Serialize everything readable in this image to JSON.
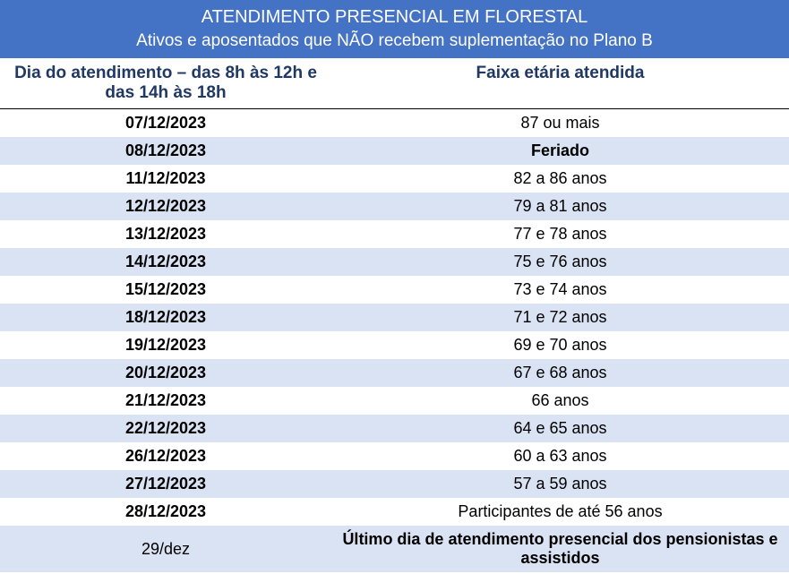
{
  "header": {
    "title": "ATENDIMENTO PRESENCIAL EM FLORESTAL",
    "subtitle": "Ativos e aposentados que NÃO recebem suplementação no Plano B",
    "background_color": "#4472c4",
    "text_color": "#ffffff"
  },
  "columns": {
    "date_header": "Dia do atendimento – das 8h às 12h e das 14h às 18h",
    "age_header": "Faixa etária atendida",
    "header_color": "#1f3864"
  },
  "rows": [
    {
      "date": "07/12/2023",
      "date_bold": true,
      "age": "87 ou mais",
      "age_bold": false
    },
    {
      "date": "08/12/2023",
      "date_bold": true,
      "age": "Feriado",
      "age_bold": true
    },
    {
      "date": "11/12/2023",
      "date_bold": true,
      "age": "82 a 86 anos",
      "age_bold": false
    },
    {
      "date": "12/12/2023",
      "date_bold": true,
      "age": "79 a 81 anos",
      "age_bold": false
    },
    {
      "date": "13/12/2023",
      "date_bold": true,
      "age": "77 e 78 anos",
      "age_bold": false
    },
    {
      "date": "14/12/2023",
      "date_bold": true,
      "age": "75 e 76 anos",
      "age_bold": false
    },
    {
      "date": "15/12/2023",
      "date_bold": true,
      "age": "73 e 74 anos",
      "age_bold": false
    },
    {
      "date": "18/12/2023",
      "date_bold": true,
      "age": "71 e 72 anos",
      "age_bold": false
    },
    {
      "date": "19/12/2023",
      "date_bold": true,
      "age": "69 e 70 anos",
      "age_bold": false
    },
    {
      "date": "20/12/2023",
      "date_bold": true,
      "age": "67 e 68 anos",
      "age_bold": false
    },
    {
      "date": "21/12/2023",
      "date_bold": true,
      "age": "66 anos",
      "age_bold": false
    },
    {
      "date": "22/12/2023",
      "date_bold": true,
      "age": "64 e 65 anos",
      "age_bold": false
    },
    {
      "date": "26/12/2023",
      "date_bold": true,
      "age": "60 a 63 anos",
      "age_bold": false
    },
    {
      "date": "27/12/2023",
      "date_bold": true,
      "age": "57 a 59 anos",
      "age_bold": false
    },
    {
      "date": "28/12/2023",
      "date_bold": true,
      "age": "Participantes de até 56 anos",
      "age_bold": false
    },
    {
      "date": "29/dez",
      "date_bold": false,
      "age": "Último dia de atendimento presencial dos pensionistas e assistidos",
      "age_bold": true
    }
  ],
  "row_colors": {
    "even": "#ffffff",
    "odd": "#dae3f3"
  }
}
